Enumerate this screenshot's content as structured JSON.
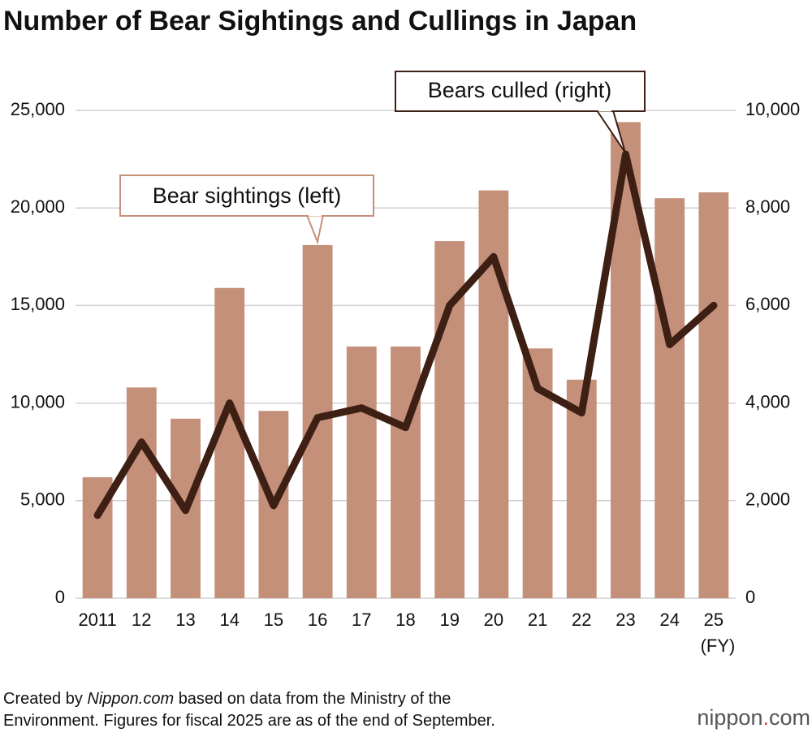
{
  "chart_data": {
    "type": "bar-line",
    "title": "Number of Bear Sightings and Cullings in Japan",
    "categories": [
      "2011",
      "12",
      "13",
      "14",
      "15",
      "16",
      "17",
      "18",
      "19",
      "20",
      "21",
      "22",
      "23",
      "24",
      "25"
    ],
    "x_unit": "(FY)",
    "series": [
      {
        "name": "Bear sightings (left)",
        "type": "bar",
        "color": "#c4907a",
        "values": [
          6200,
          10800,
          9200,
          15900,
          9600,
          18100,
          12900,
          12900,
          18300,
          20900,
          12800,
          11200,
          24400,
          20500,
          20800
        ]
      },
      {
        "name": "Bears culled (right)",
        "type": "line",
        "axis": "y2",
        "color": "#3d1f14",
        "values": [
          1700,
          3200,
          1800,
          4000,
          1900,
          3700,
          3900,
          3500,
          6000,
          7000,
          4300,
          3800,
          9100,
          5200,
          6000
        ]
      }
    ],
    "ylim": [
      0,
      25000
    ],
    "yticks": [
      0,
      {
        "value": 5000,
        "label": "5,000"
      },
      {
        "value": 10000,
        "label": "10,000"
      },
      {
        "value": 15000,
        "label": "15,000"
      },
      {
        "value": 20000,
        "label": "20,000"
      },
      {
        "value": 25000,
        "label": "25,000"
      }
    ],
    "y2lim": [
      0,
      10000
    ],
    "y2ticks": [
      0,
      {
        "value": 2000,
        "label": "2,000"
      },
      {
        "value": 4000,
        "label": "4,000"
      },
      {
        "value": 6000,
        "label": "6,000"
      },
      {
        "value": 8000,
        "label": "8,000"
      },
      {
        "value": 10000,
        "label": "10,000"
      }
    ],
    "grid": true
  },
  "note": {
    "prefix": "Created by",
    "source": "Nippon.com",
    "line1_rest": "based on data from the Ministry of the",
    "line2": "Environment. Figures for fiscal 2025 are as of the end of September."
  },
  "logo": {
    "name": "nippon",
    "dot": ".",
    "tld": "com"
  }
}
